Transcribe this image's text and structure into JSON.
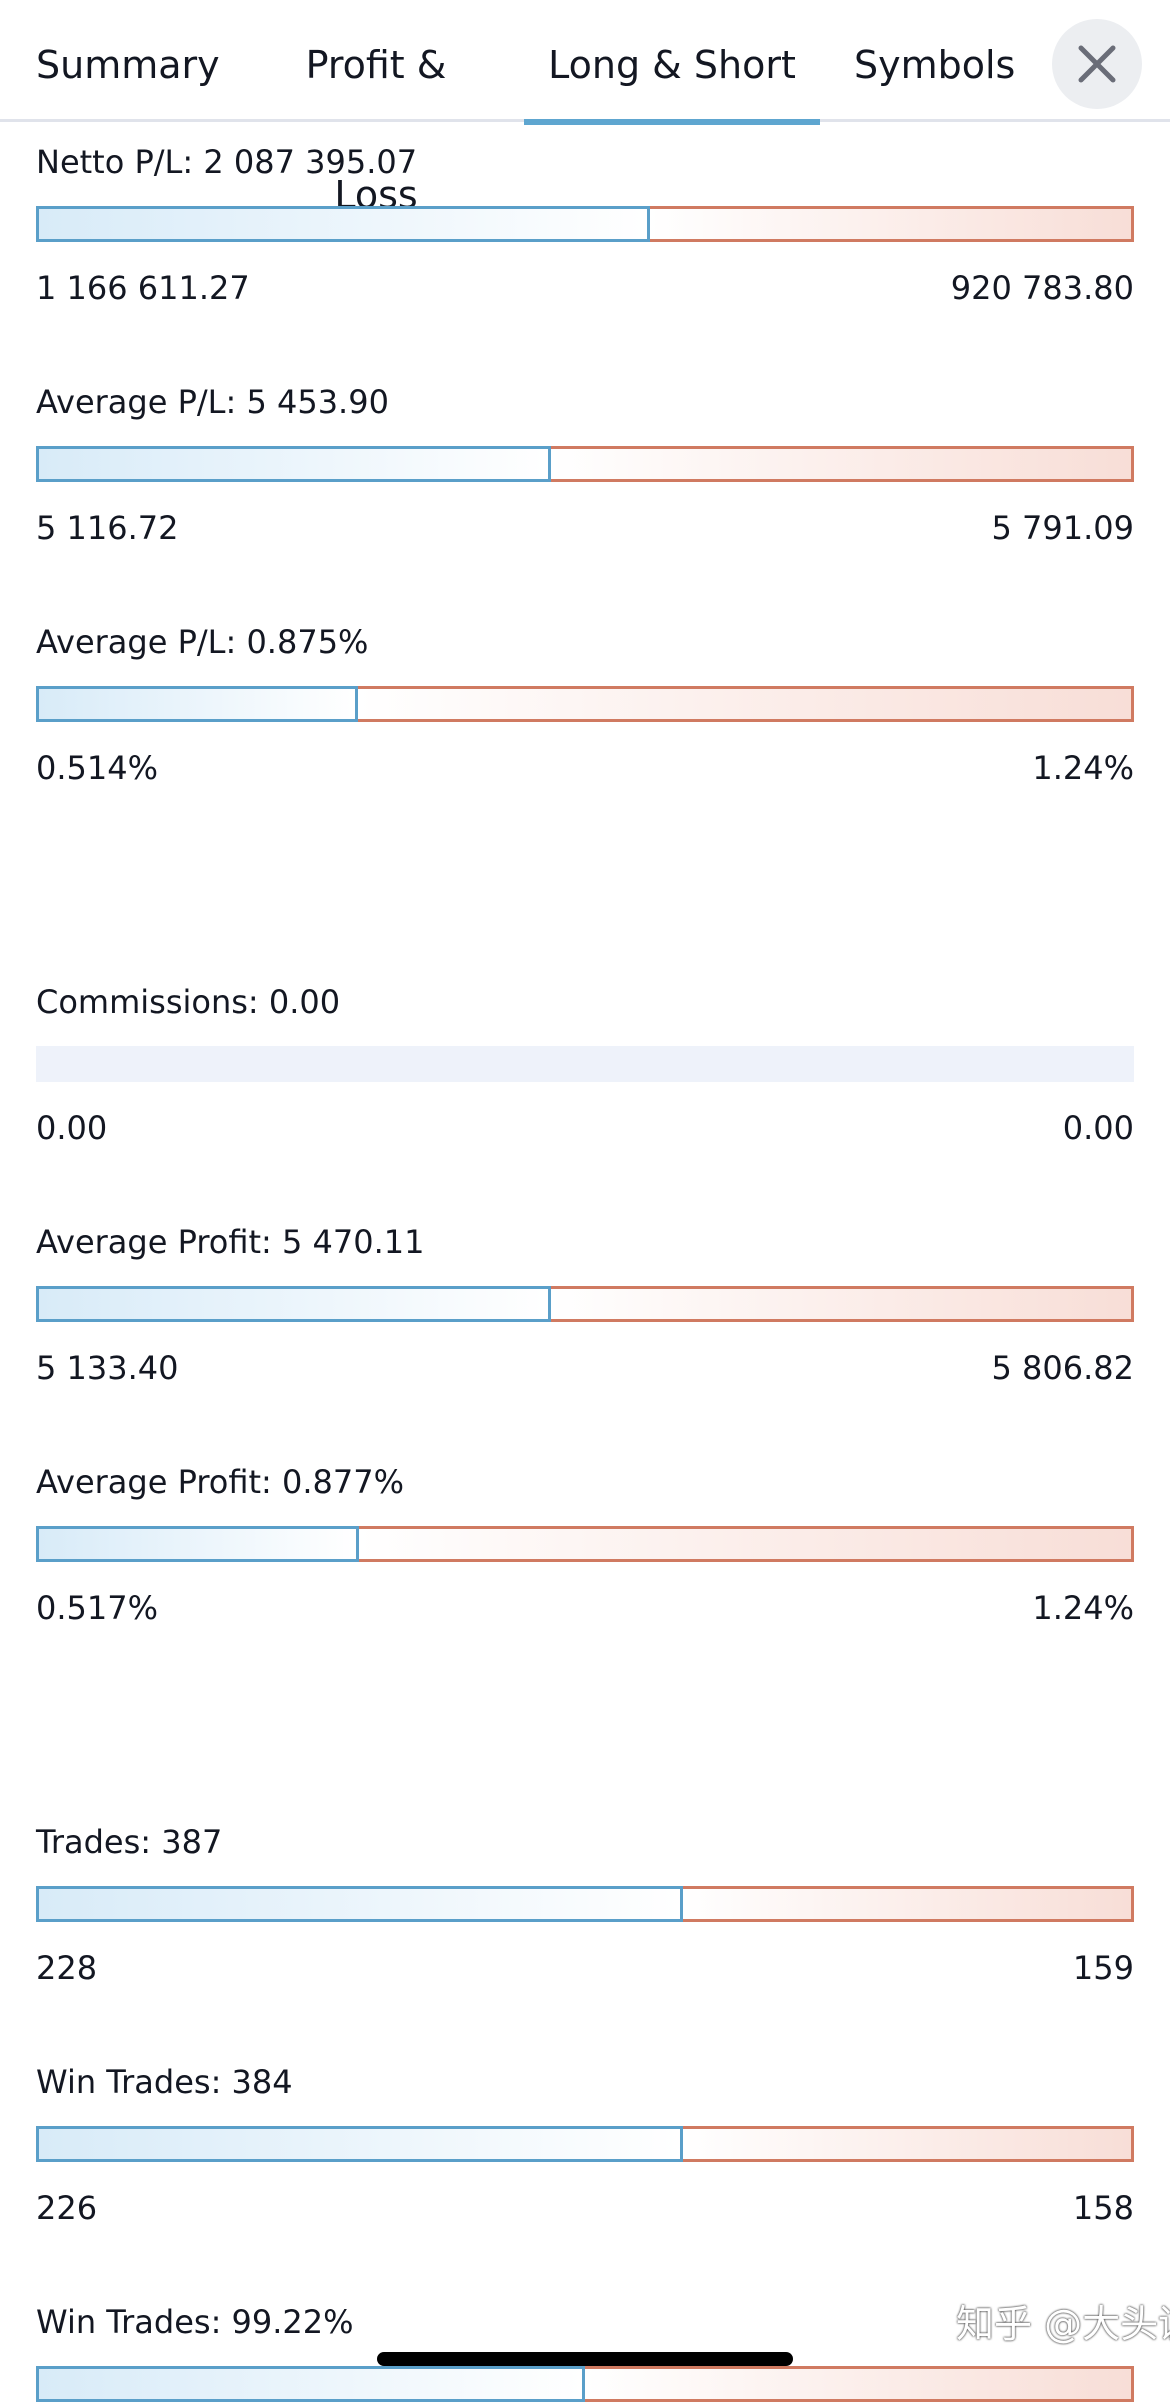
{
  "tabs": [
    {
      "label": "Summary",
      "active": false
    },
    {
      "label": "Profit & Loss",
      "active": false
    },
    {
      "label": "Long & Short",
      "active": true
    },
    {
      "label": "Symbols",
      "active": false
    }
  ],
  "colors": {
    "long_border": "#5a9fc9",
    "short_border": "#d07a61",
    "active_tab_underline": "#5ea6d0",
    "empty_bar": "#eef2fa"
  },
  "metrics": [
    {
      "title": "Netto P/L: 2 087 395.07",
      "long_value": "1 166 611.27",
      "short_value": "920 783.80",
      "long_fraction": 0.559
    },
    {
      "title": "Average P/L: 5 453.90",
      "long_value": "5 116.72",
      "short_value": "5 791.09",
      "long_fraction": 0.469
    },
    {
      "title": "Average P/L: 0.875%",
      "long_value": "0.514%",
      "short_value": "1.24%",
      "long_fraction": 0.293
    },
    {
      "title": "Commissions: 0.00",
      "long_value": "0.00",
      "short_value": "0.00",
      "long_fraction": null
    },
    {
      "title": "Average Profit: 5 470.11",
      "long_value": "5 133.40",
      "short_value": "5 806.82",
      "long_fraction": 0.469
    },
    {
      "title": "Average Profit: 0.877%",
      "long_value": "0.517%",
      "short_value": "1.24%",
      "long_fraction": 0.294
    },
    {
      "title": "Trades: 387",
      "long_value": "228",
      "short_value": "159",
      "long_fraction": 0.589
    },
    {
      "title": "Win Trades: 384",
      "long_value": "226",
      "short_value": "158",
      "long_fraction": 0.589
    },
    {
      "title": "Win Trades: 99.22%",
      "long_value": "",
      "short_value": "",
      "long_fraction": 0.5
    }
  ],
  "watermark": "知乎 @大头诚"
}
